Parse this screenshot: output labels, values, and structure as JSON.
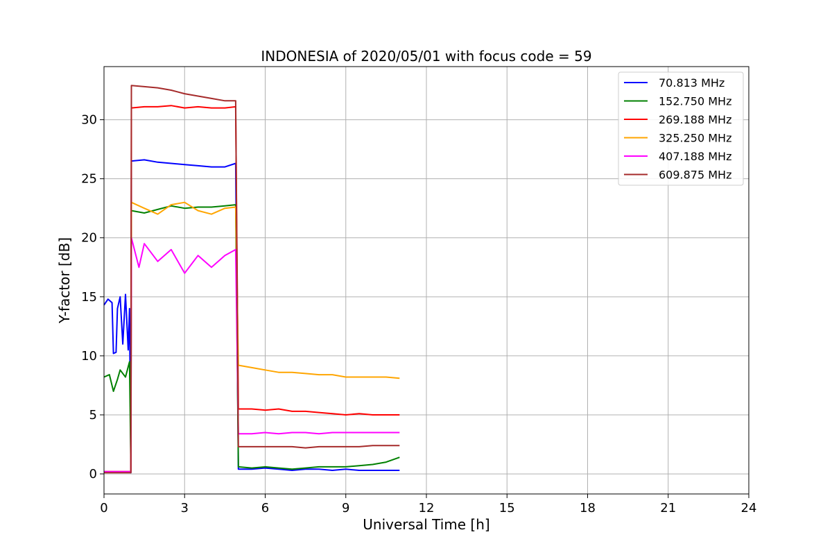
{
  "chart_data": {
    "type": "line",
    "title": "INDONESIA of 2020/05/01 with focus code = 59",
    "xlabel": "Universal Time [h]",
    "ylabel": "Y-factor [dB]",
    "xlim": [
      0,
      24
    ],
    "ylim": [
      -1.7,
      34.5
    ],
    "xticks": [
      0,
      3,
      6,
      9,
      12,
      15,
      18,
      21,
      24
    ],
    "yticks": [
      0,
      5,
      10,
      15,
      20,
      25,
      30
    ],
    "grid": true,
    "legend_position": "top-right",
    "series": [
      {
        "name": "70.813 MHz",
        "color": "#0000ff",
        "points": [
          [
            0,
            14.3
          ],
          [
            0.15,
            14.8
          ],
          [
            0.3,
            14.5
          ],
          [
            0.35,
            10.2
          ],
          [
            0.45,
            10.3
          ],
          [
            0.5,
            14.0
          ],
          [
            0.6,
            15.0
          ],
          [
            0.7,
            11.0
          ],
          [
            0.8,
            15.2
          ],
          [
            0.9,
            10.5
          ],
          [
            0.95,
            14.0
          ],
          [
            1.0,
            0.1
          ],
          [
            1.02,
            26.5
          ],
          [
            1.5,
            26.6
          ],
          [
            2.0,
            26.4
          ],
          [
            2.5,
            26.3
          ],
          [
            3.0,
            26.2
          ],
          [
            3.5,
            26.1
          ],
          [
            4.0,
            26.0
          ],
          [
            4.5,
            26.0
          ],
          [
            4.9,
            26.3
          ],
          [
            5.0,
            0.4
          ],
          [
            5.5,
            0.4
          ],
          [
            6.0,
            0.5
          ],
          [
            6.5,
            0.4
          ],
          [
            7.0,
            0.3
          ],
          [
            7.5,
            0.4
          ],
          [
            8.0,
            0.4
          ],
          [
            8.5,
            0.3
          ],
          [
            9.0,
            0.4
          ],
          [
            9.5,
            0.3
          ],
          [
            10.0,
            0.3
          ],
          [
            10.5,
            0.3
          ],
          [
            11.0,
            0.3
          ]
        ]
      },
      {
        "name": "152.750 MHz",
        "color": "#008000",
        "points": [
          [
            0,
            8.2
          ],
          [
            0.2,
            8.4
          ],
          [
            0.35,
            7.0
          ],
          [
            0.5,
            8.0
          ],
          [
            0.6,
            8.8
          ],
          [
            0.8,
            8.2
          ],
          [
            0.95,
            9.5
          ],
          [
            1.0,
            0.2
          ],
          [
            1.02,
            22.3
          ],
          [
            1.5,
            22.1
          ],
          [
            2.0,
            22.4
          ],
          [
            2.5,
            22.7
          ],
          [
            3.0,
            22.5
          ],
          [
            3.5,
            22.6
          ],
          [
            4.0,
            22.6
          ],
          [
            4.5,
            22.7
          ],
          [
            4.9,
            22.8
          ],
          [
            5.0,
            0.6
          ],
          [
            5.5,
            0.5
          ],
          [
            6.0,
            0.6
          ],
          [
            6.5,
            0.5
          ],
          [
            7.0,
            0.4
          ],
          [
            7.5,
            0.5
          ],
          [
            8.0,
            0.6
          ],
          [
            8.5,
            0.6
          ],
          [
            9.0,
            0.6
          ],
          [
            9.5,
            0.7
          ],
          [
            10.0,
            0.8
          ],
          [
            10.5,
            1.0
          ],
          [
            11.0,
            1.4
          ]
        ]
      },
      {
        "name": "269.188 MHz",
        "color": "#ff0000",
        "points": [
          [
            0,
            0.2
          ],
          [
            0.5,
            0.2
          ],
          [
            1.0,
            0.2
          ],
          [
            1.02,
            31.0
          ],
          [
            1.5,
            31.1
          ],
          [
            2.0,
            31.1
          ],
          [
            2.5,
            31.2
          ],
          [
            3.0,
            31.0
          ],
          [
            3.5,
            31.1
          ],
          [
            4.0,
            31.0
          ],
          [
            4.5,
            31.0
          ],
          [
            4.9,
            31.1
          ],
          [
            5.0,
            5.5
          ],
          [
            5.5,
            5.5
          ],
          [
            6.0,
            5.4
          ],
          [
            6.5,
            5.5
          ],
          [
            7.0,
            5.3
          ],
          [
            7.5,
            5.3
          ],
          [
            8.0,
            5.2
          ],
          [
            8.5,
            5.1
          ],
          [
            9.0,
            5.0
          ],
          [
            9.5,
            5.1
          ],
          [
            10.0,
            5.0
          ],
          [
            10.5,
            5.0
          ],
          [
            11.0,
            5.0
          ]
        ]
      },
      {
        "name": "325.250 MHz",
        "color": "#ffa500",
        "points": [
          [
            0,
            0.2
          ],
          [
            0.5,
            0.2
          ],
          [
            1.0,
            0.2
          ],
          [
            1.02,
            23.0
          ],
          [
            1.5,
            22.5
          ],
          [
            2.0,
            22.0
          ],
          [
            2.5,
            22.8
          ],
          [
            3.0,
            23.0
          ],
          [
            3.5,
            22.3
          ],
          [
            4.0,
            22.0
          ],
          [
            4.5,
            22.5
          ],
          [
            4.9,
            22.6
          ],
          [
            5.0,
            9.2
          ],
          [
            5.5,
            9.0
          ],
          [
            6.0,
            8.8
          ],
          [
            6.5,
            8.6
          ],
          [
            7.0,
            8.6
          ],
          [
            7.5,
            8.5
          ],
          [
            8.0,
            8.4
          ],
          [
            8.5,
            8.4
          ],
          [
            9.0,
            8.2
          ],
          [
            9.5,
            8.2
          ],
          [
            10.0,
            8.2
          ],
          [
            10.5,
            8.2
          ],
          [
            11.0,
            8.1
          ]
        ]
      },
      {
        "name": "407.188 MHz",
        "color": "#ff00ff",
        "points": [
          [
            0,
            0.2
          ],
          [
            0.5,
            0.2
          ],
          [
            1.0,
            0.2
          ],
          [
            1.02,
            20.0
          ],
          [
            1.3,
            17.5
          ],
          [
            1.5,
            19.5
          ],
          [
            2.0,
            18.0
          ],
          [
            2.5,
            19.0
          ],
          [
            3.0,
            17.0
          ],
          [
            3.5,
            18.5
          ],
          [
            4.0,
            17.5
          ],
          [
            4.5,
            18.5
          ],
          [
            4.9,
            19.0
          ],
          [
            5.0,
            3.4
          ],
          [
            5.5,
            3.4
          ],
          [
            6.0,
            3.5
          ],
          [
            6.5,
            3.4
          ],
          [
            7.0,
            3.5
          ],
          [
            7.5,
            3.5
          ],
          [
            8.0,
            3.4
          ],
          [
            8.5,
            3.5
          ],
          [
            9.0,
            3.5
          ],
          [
            9.5,
            3.5
          ],
          [
            10.0,
            3.5
          ],
          [
            10.5,
            3.5
          ],
          [
            11.0,
            3.5
          ]
        ]
      },
      {
        "name": "609.875 MHz",
        "color": "#a52a2a",
        "points": [
          [
            0,
            0.1
          ],
          [
            0.5,
            0.1
          ],
          [
            1.0,
            0.1
          ],
          [
            1.02,
            32.9
          ],
          [
            1.5,
            32.8
          ],
          [
            2.0,
            32.7
          ],
          [
            2.5,
            32.5
          ],
          [
            3.0,
            32.2
          ],
          [
            3.5,
            32.0
          ],
          [
            4.0,
            31.8
          ],
          [
            4.5,
            31.6
          ],
          [
            4.9,
            31.6
          ],
          [
            5.0,
            2.3
          ],
          [
            5.5,
            2.3
          ],
          [
            6.0,
            2.3
          ],
          [
            6.5,
            2.3
          ],
          [
            7.0,
            2.3
          ],
          [
            7.5,
            2.2
          ],
          [
            8.0,
            2.3
          ],
          [
            8.5,
            2.3
          ],
          [
            9.0,
            2.3
          ],
          [
            9.5,
            2.3
          ],
          [
            10.0,
            2.4
          ],
          [
            10.5,
            2.4
          ],
          [
            11.0,
            2.4
          ]
        ]
      }
    ]
  }
}
